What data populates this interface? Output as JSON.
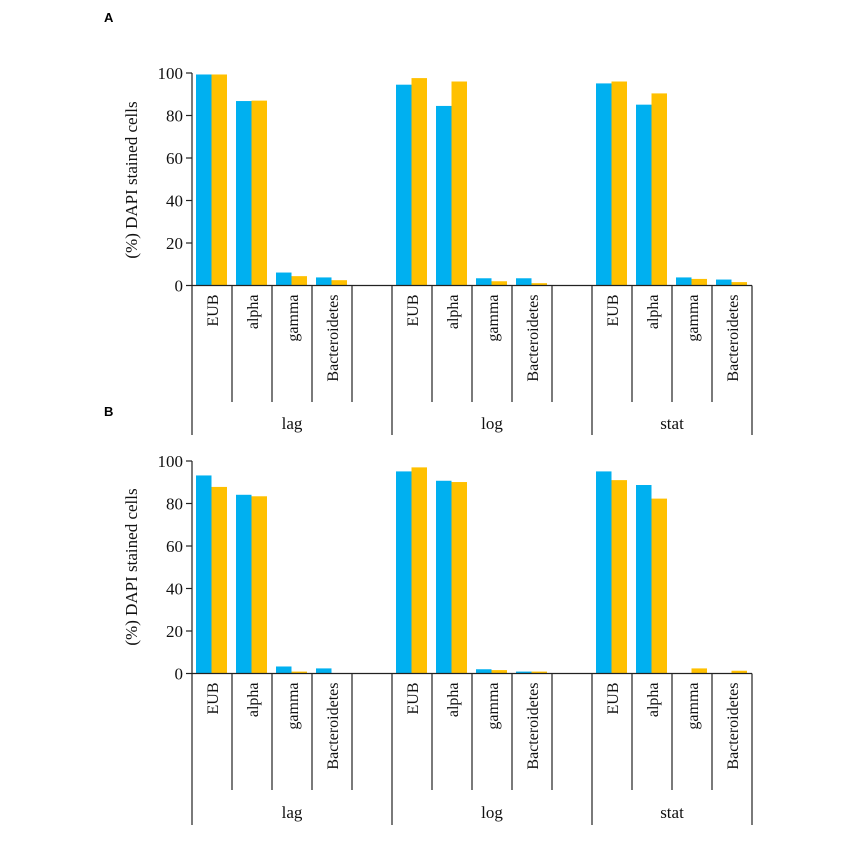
{
  "colors": {
    "series1": "#00B0F0",
    "series2": "#FFC000",
    "axis": "#222222"
  },
  "chart_data": [
    {
      "type": "bar",
      "panel_label": "A",
      "ylabel": "(%) DAPI stained cells",
      "ylim": [
        0,
        100
      ],
      "yticks": [
        0,
        20,
        40,
        60,
        80,
        100
      ],
      "groups": [
        "lag",
        "log",
        "stat"
      ],
      "categories": [
        "EUB",
        "alpha",
        "gamma",
        "Bacteroidetes"
      ],
      "grid": false,
      "series": [
        {
          "color": "#00B0F0",
          "values": [
            [
              99.3,
              86.8,
              6.1,
              3.8
            ],
            [
              94.5,
              84.5,
              3.4,
              3.4
            ],
            [
              95.1,
              85.1,
              3.8,
              2.8
            ]
          ]
        },
        {
          "color": "#FFC000",
          "values": [
            [
              99.3,
              87.0,
              4.4,
              2.5
            ],
            [
              97.6,
              96.0,
              2.0,
              1.1
            ],
            [
              96.0,
              90.4,
              3.1,
              1.6
            ]
          ]
        }
      ]
    },
    {
      "type": "bar",
      "panel_label": "B",
      "ylabel": "(%) DAPI stained cells",
      "ylim": [
        0,
        100
      ],
      "yticks": [
        0,
        20,
        40,
        60,
        80,
        100
      ],
      "groups": [
        "lag",
        "log",
        "stat"
      ],
      "categories": [
        "EUB",
        "alpha",
        "gamma",
        "Bacteroidetes"
      ],
      "grid": false,
      "series": [
        {
          "color": "#00B0F0",
          "values": [
            [
              93.2,
              84.1,
              3.3,
              2.4
            ],
            [
              95.1,
              90.7,
              2.0,
              0.9
            ],
            [
              95.1,
              88.7,
              0,
              0
            ]
          ]
        },
        {
          "color": "#FFC000",
          "values": [
            [
              87.8,
              83.4,
              0.9,
              0
            ],
            [
              97.0,
              90.1,
              1.6,
              0.9
            ],
            [
              91.0,
              82.3,
              2.4,
              1.3
            ]
          ]
        }
      ]
    }
  ]
}
